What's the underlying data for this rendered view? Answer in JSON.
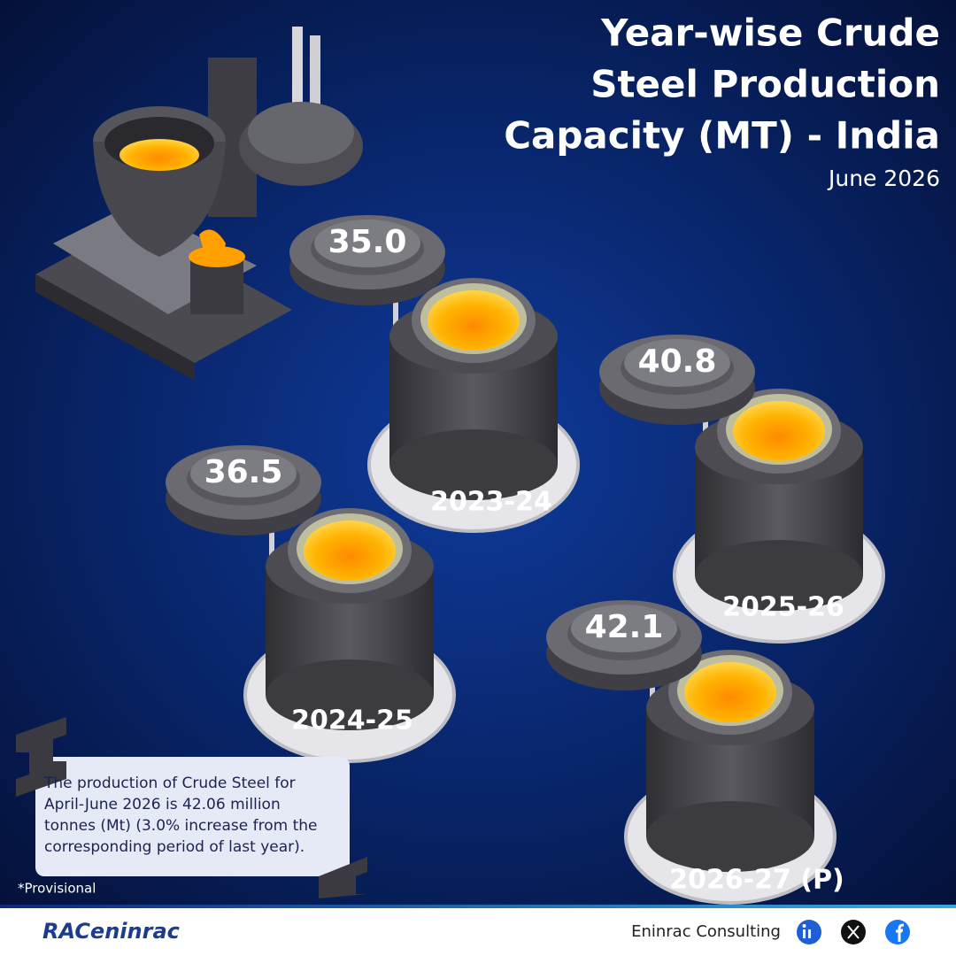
{
  "chart_data": {
    "type": "crucible",
    "title": [
      "Year-wise Crude",
      "Steel Production",
      "Capacity (MT) - India"
    ],
    "subtitle": "June 2026",
    "categories": [
      "2023-24",
      "2024-25",
      "2025-26",
      "2026-27 (P)"
    ],
    "values": [
      35,
      36.5,
      40.8,
      42.1
    ],
    "value_labels": [
      "35.0",
      "36.5",
      "40.8",
      "42.1"
    ],
    "color": "#ffb300"
  },
  "note": [
    "The production of Crude Steel for",
    "April-June 2026 is 42.06 million",
    "tonnes (Mt) (3.0% increase from the",
    "corresponding period of last year)."
  ],
  "footnote": "*Provisional",
  "footer": {
    "logo": "RACeninrac",
    "company": "Eninrac Consulting"
  }
}
